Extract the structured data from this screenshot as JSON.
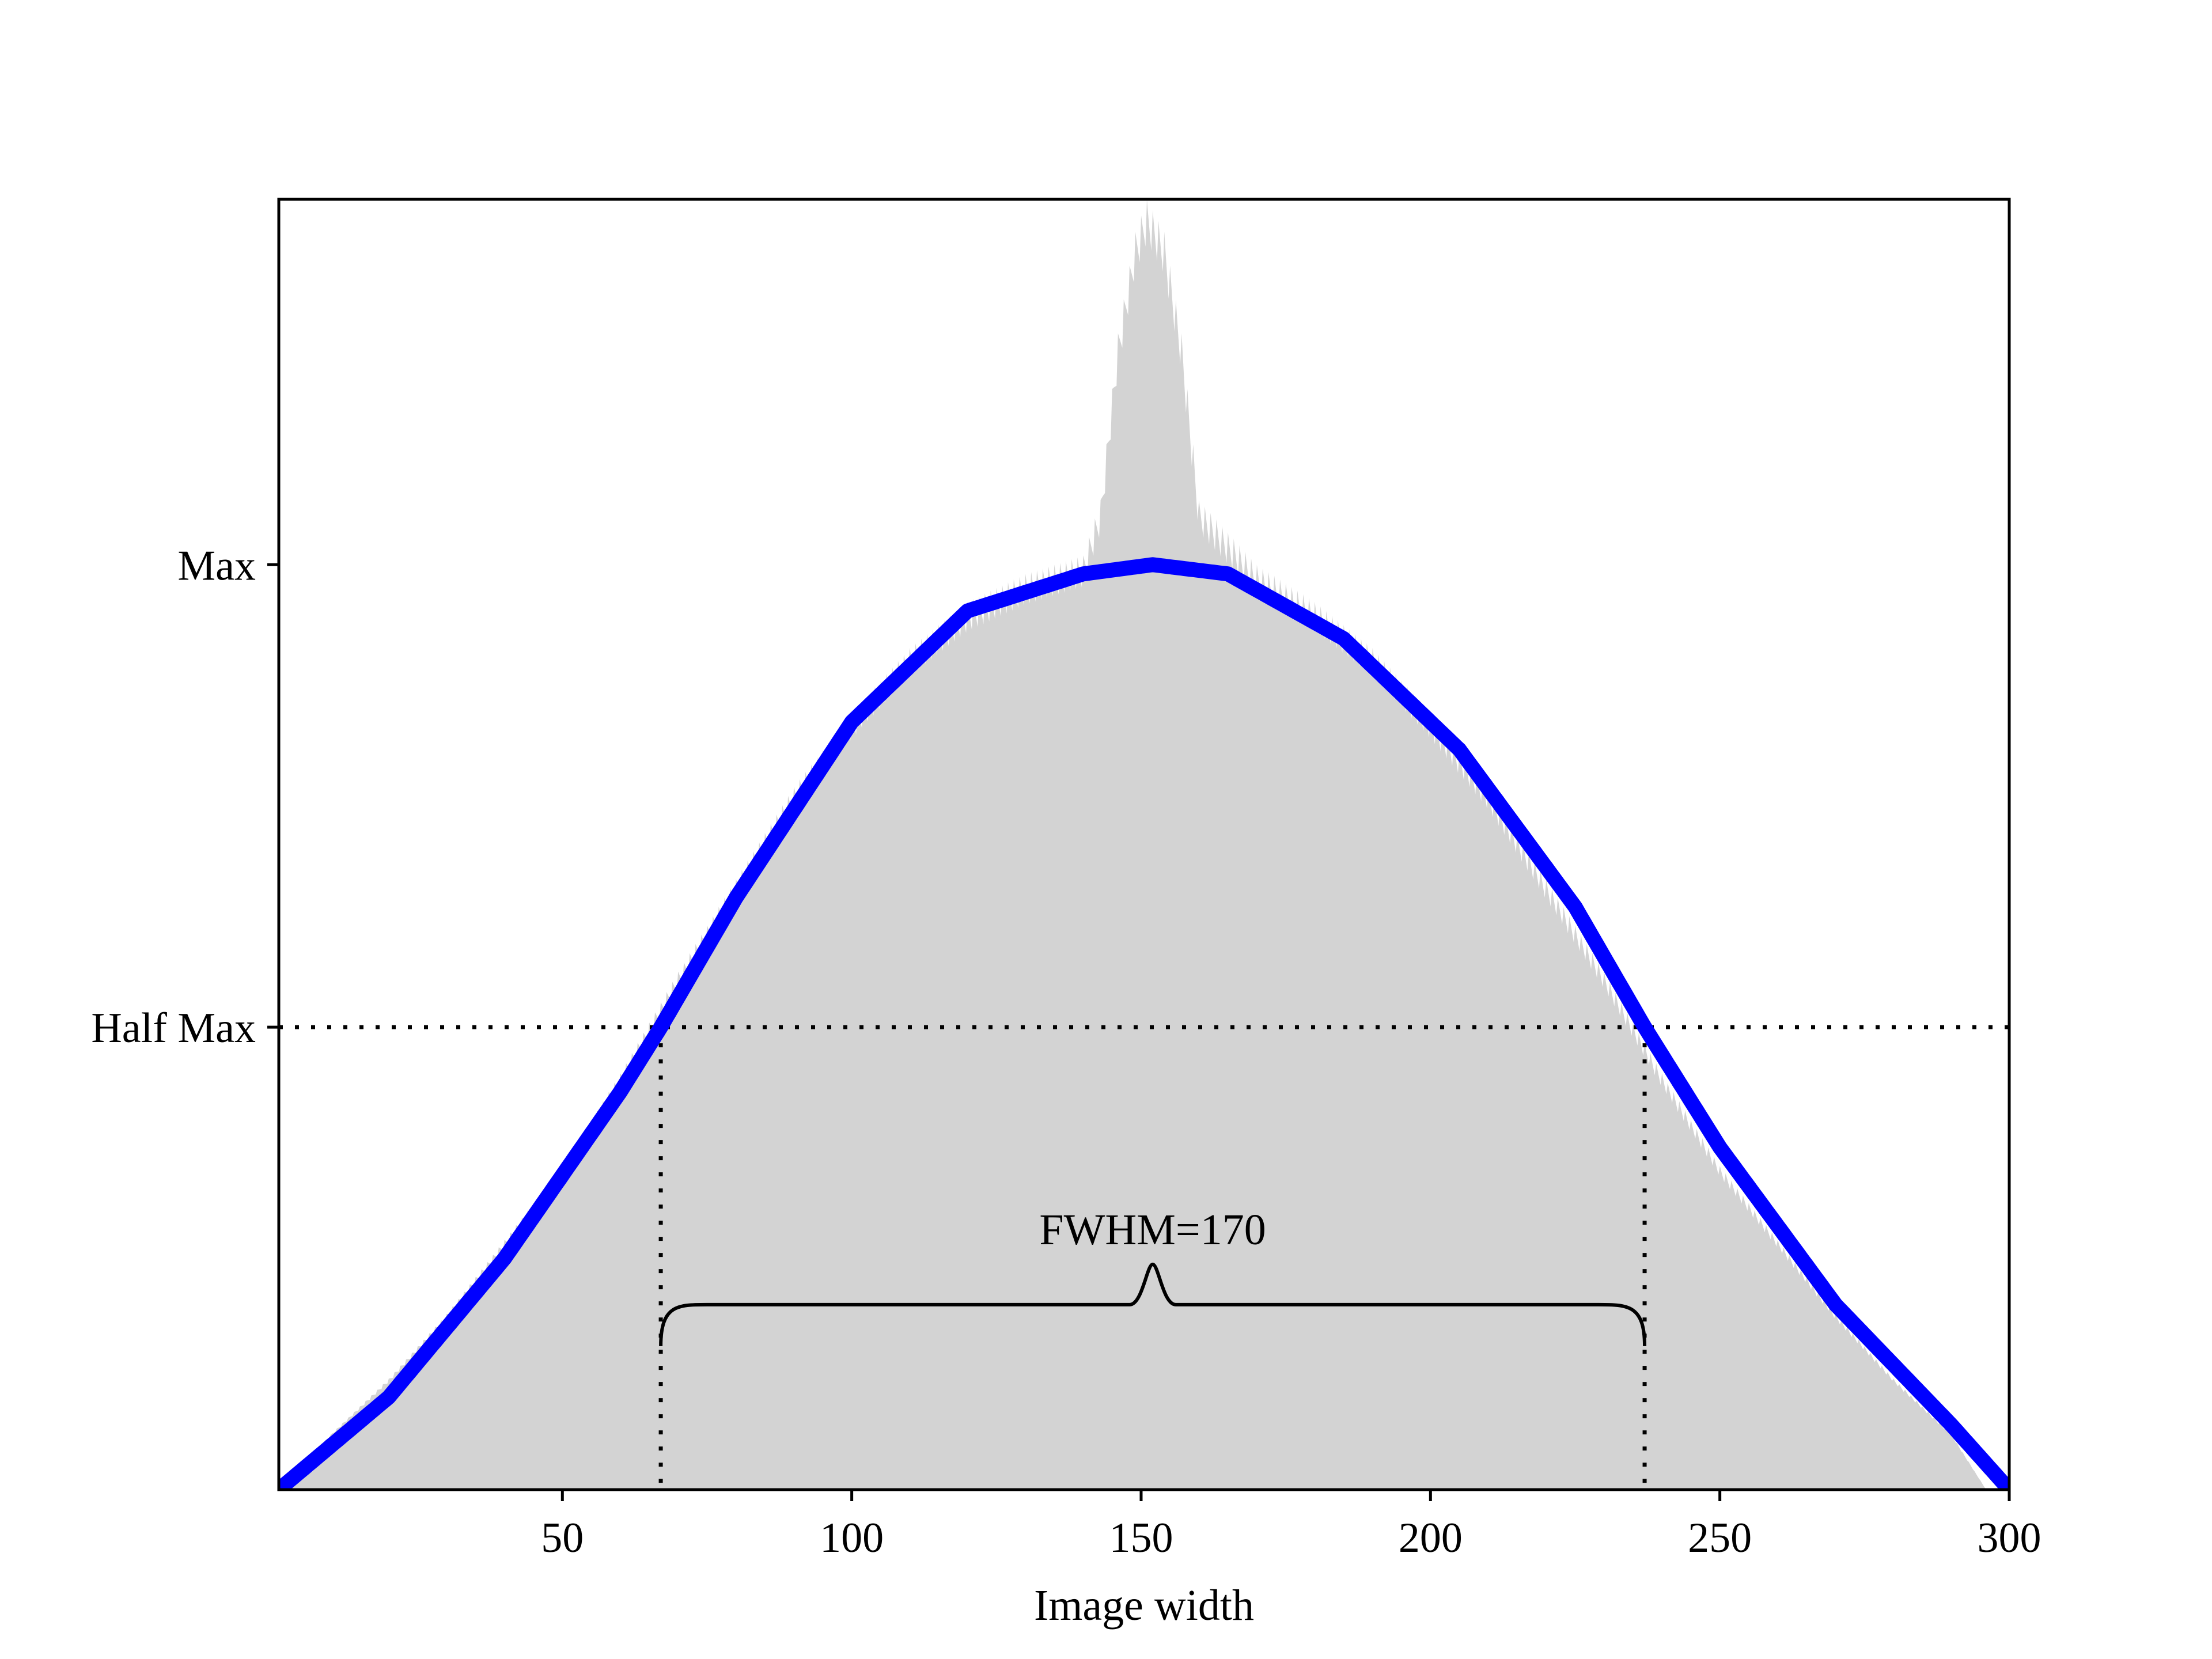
{
  "chart_data": {
    "type": "area",
    "title": "",
    "xlabel": "Image width",
    "ylabel": "",
    "xlim": [
      1,
      300
    ],
    "ylim": [
      0,
      1.395
    ],
    "grid": false,
    "legend": "none",
    "x_ticks": [
      50,
      100,
      150,
      200,
      250,
      300
    ],
    "y_ticks": [
      {
        "value": 0.5,
        "label": "Half Max"
      },
      {
        "value": 1.0,
        "label": "Max"
      }
    ],
    "series": [
      {
        "kind": "filled-histogram",
        "color": "#d3d3d3",
        "x": [
          1,
          10,
          20,
          30,
          40,
          50,
          60,
          70,
          80,
          90,
          100,
          110,
          120,
          130,
          140,
          143,
          146,
          149,
          151,
          154,
          157,
          160,
          170,
          180,
          190,
          200,
          210,
          220,
          230,
          240,
          250,
          260,
          270,
          280,
          290,
          296
        ],
        "y": [
          0.0,
          0.06,
          0.12,
          0.19,
          0.27,
          0.35,
          0.45,
          0.56,
          0.66,
          0.76,
          0.84,
          0.91,
          0.96,
          0.99,
          1.01,
          1.07,
          1.25,
          1.36,
          1.395,
          1.36,
          1.25,
          1.07,
          1.0,
          0.96,
          0.91,
          0.84,
          0.76,
          0.66,
          0.56,
          0.45,
          0.35,
          0.27,
          0.19,
          0.12,
          0.06,
          0.0
        ]
      },
      {
        "kind": "gaussian-fit",
        "color": "#0000ff",
        "x": [
          1,
          20,
          40,
          60,
          67,
          80,
          100,
          120,
          140,
          152,
          165,
          185,
          205,
          225,
          237,
          250,
          270,
          290,
          300
        ],
        "y": [
          0.0,
          0.1,
          0.25,
          0.43,
          0.5,
          0.64,
          0.83,
          0.95,
          0.99,
          1.0,
          0.99,
          0.92,
          0.8,
          0.63,
          0.5,
          0.37,
          0.2,
          0.07,
          0.0
        ]
      }
    ],
    "annotations": {
      "half_max_line": 0.5,
      "fwhm_left": 67,
      "fwhm_right": 237,
      "fwhm_text": "FWHM=170",
      "brace_y": 0.2
    }
  }
}
